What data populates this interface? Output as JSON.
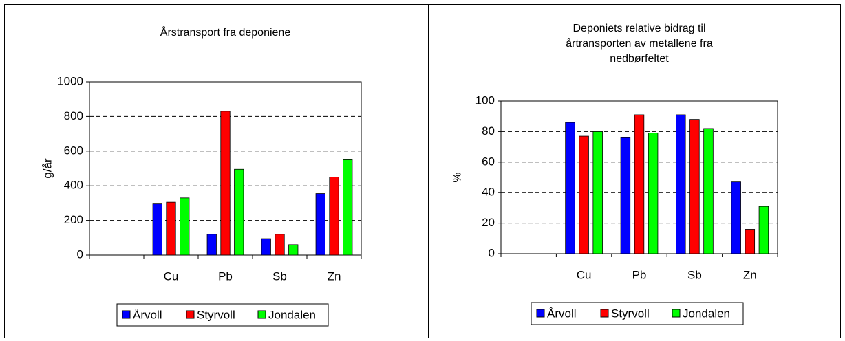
{
  "chart_data": [
    {
      "type": "bar",
      "title": [
        "Årstransport fra deponiene"
      ],
      "y_label": "g/år",
      "categories": [
        null,
        "Cu",
        "Pb",
        "Sb",
        "Zn"
      ],
      "series": [
        {
          "name": "Årvoll",
          "color": "#0000ff",
          "values": [
            null,
            295,
            120,
            95,
            355
          ]
        },
        {
          "name": "Styrvoll",
          "color": "#ff0000",
          "values": [
            null,
            305,
            830,
            120,
            450
          ]
        },
        {
          "name": "Jondalen",
          "color": "#00ff00",
          "values": [
            null,
            330,
            495,
            60,
            550
          ]
        }
      ],
      "ylim": [
        0,
        1000
      ],
      "yticks": [
        0,
        200,
        400,
        600,
        800,
        1000
      ],
      "grid": true,
      "legend": "bottom"
    },
    {
      "type": "bar",
      "title": [
        "Deponiets relative bidrag til",
        "årtransporten av metallene fra",
        "nedbørfeltet"
      ],
      "y_label": "%",
      "categories": [
        null,
        "Cu",
        "Pb",
        "Sb",
        "Zn"
      ],
      "series": [
        {
          "name": "Årvoll",
          "color": "#0000ff",
          "values": [
            null,
            86,
            76,
            91,
            47
          ]
        },
        {
          "name": "Styrvoll",
          "color": "#ff0000",
          "values": [
            null,
            77,
            91,
            88,
            16
          ]
        },
        {
          "name": "Jondalen",
          "color": "#00ff00",
          "values": [
            null,
            80,
            79,
            82,
            31
          ]
        }
      ],
      "ylim": [
        0,
        100
      ],
      "yticks": [
        0,
        20,
        40,
        60,
        80,
        100
      ],
      "grid": true,
      "legend": "bottom"
    }
  ]
}
